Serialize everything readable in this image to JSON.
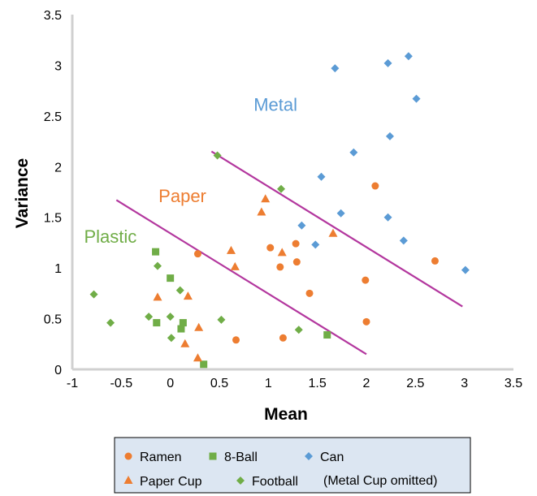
{
  "chart_data": {
    "type": "scatter",
    "xlabel": "Mean",
    "ylabel": "Variance",
    "xlim": [
      -1,
      3.5
    ],
    "ylim": [
      0,
      3.5
    ],
    "x_ticks": [
      "-1",
      "-0.5",
      "0",
      "0.5",
      "1",
      "1.5",
      "2",
      "2.5",
      "3",
      "3.5"
    ],
    "y_ticks": [
      "0",
      "0.5",
      "1",
      "1.5",
      "2",
      "2.5",
      "3",
      "3.5"
    ],
    "grid": false,
    "legend_position": "bottom",
    "legend_note": "(Metal Cup omitted)",
    "series": [
      {
        "name": "Ramen",
        "marker": "circle",
        "color": "#ED7D31",
        "x": [
          0.28,
          0.67,
          1.02,
          1.12,
          1.15,
          1.28,
          1.29,
          1.42,
          1.99,
          2.0,
          2.09,
          2.7
        ],
        "y": [
          1.14,
          0.29,
          1.2,
          1.01,
          0.31,
          1.24,
          1.06,
          0.75,
          0.88,
          0.47,
          1.81,
          1.07
        ]
      },
      {
        "name": "8-Ball",
        "marker": "square",
        "color": "#70AD47",
        "x": [
          -0.15,
          -0.14,
          0.0,
          0.11,
          0.13,
          0.34,
          1.6
        ],
        "y": [
          1.16,
          0.46,
          0.9,
          0.4,
          0.46,
          0.05,
          0.34
        ]
      },
      {
        "name": "Can",
        "marker": "diamond",
        "color": "#5B9BD5",
        "x": [
          1.68,
          2.22,
          2.43,
          2.51,
          2.24,
          1.87,
          1.54,
          1.34,
          1.74,
          2.22,
          2.38,
          1.48,
          3.01
        ],
        "y": [
          2.97,
          3.02,
          3.09,
          2.67,
          2.3,
          2.14,
          1.9,
          1.42,
          1.54,
          1.5,
          1.27,
          1.23,
          0.98
        ]
      },
      {
        "name": "Paper Cup",
        "marker": "triangle",
        "color": "#ED7D31",
        "x": [
          -0.13,
          0.18,
          0.29,
          0.28,
          0.15,
          0.62,
          0.66,
          0.93,
          0.97,
          1.14,
          1.66
        ],
        "y": [
          0.71,
          0.72,
          0.41,
          0.11,
          0.25,
          1.17,
          1.01,
          1.55,
          1.68,
          1.15,
          1.34
        ]
      },
      {
        "name": "Football",
        "marker": "diamond",
        "color": "#70AD47",
        "x": [
          -0.78,
          -0.61,
          -0.22,
          -0.13,
          0.0,
          0.01,
          0.1,
          0.52,
          0.48,
          1.13,
          1.31
        ],
        "y": [
          0.74,
          0.46,
          0.52,
          1.02,
          0.52,
          0.31,
          0.78,
          0.49,
          2.11,
          1.78,
          0.39
        ]
      }
    ],
    "boundaries": [
      {
        "color": "#B3379E",
        "x": [
          -0.55,
          2.0
        ],
        "y": [
          1.67,
          0.15
        ]
      },
      {
        "color": "#B3379E",
        "x": [
          0.42,
          2.98
        ],
        "y": [
          2.15,
          0.62
        ]
      }
    ],
    "annotations": [
      {
        "text": "Metal",
        "x": 0.85,
        "y": 2.55,
        "color": "#5B9BD5"
      },
      {
        "text": "Paper",
        "x": -0.12,
        "y": 1.65,
        "color": "#ED7D31"
      },
      {
        "text": "Plastic",
        "x": -0.88,
        "y": 1.25,
        "color": "#70AD47"
      }
    ]
  }
}
